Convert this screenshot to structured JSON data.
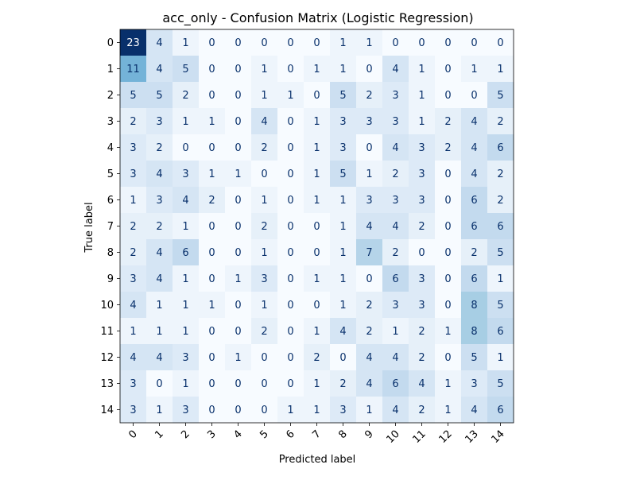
{
  "chart_data": {
    "type": "heatmap",
    "title": "acc_only - Confusion Matrix (Logistic Regression)",
    "xlabel": "Predicted label",
    "ylabel": "True label",
    "x_categories": [
      "0",
      "1",
      "2",
      "3",
      "4",
      "5",
      "6",
      "7",
      "8",
      "9",
      "10",
      "11",
      "12",
      "13",
      "14"
    ],
    "y_categories": [
      "0",
      "1",
      "2",
      "3",
      "4",
      "5",
      "6",
      "7",
      "8",
      "9",
      "10",
      "11",
      "12",
      "13",
      "14"
    ],
    "matrix": [
      [
        23,
        4,
        1,
        0,
        0,
        0,
        0,
        0,
        1,
        1,
        0,
        0,
        0,
        0,
        0
      ],
      [
        11,
        4,
        5,
        0,
        0,
        1,
        0,
        1,
        1,
        0,
        4,
        1,
        0,
        1,
        1
      ],
      [
        5,
        5,
        2,
        0,
        0,
        1,
        1,
        0,
        5,
        2,
        3,
        1,
        0,
        0,
        5
      ],
      [
        2,
        3,
        1,
        1,
        0,
        4,
        0,
        1,
        3,
        3,
        3,
        1,
        2,
        4,
        2
      ],
      [
        3,
        2,
        0,
        0,
        0,
        2,
        0,
        1,
        3,
        0,
        4,
        3,
        2,
        4,
        6
      ],
      [
        3,
        4,
        3,
        1,
        1,
        0,
        0,
        1,
        5,
        1,
        2,
        3,
        0,
        4,
        2
      ],
      [
        1,
        3,
        4,
        2,
        0,
        1,
        0,
        1,
        1,
        3,
        3,
        3,
        0,
        6,
        2
      ],
      [
        2,
        2,
        1,
        0,
        0,
        2,
        0,
        0,
        1,
        4,
        4,
        2,
        0,
        6,
        6
      ],
      [
        2,
        4,
        6,
        0,
        0,
        1,
        0,
        0,
        1,
        7,
        2,
        0,
        0,
        2,
        5
      ],
      [
        3,
        4,
        1,
        0,
        1,
        3,
        0,
        1,
        1,
        0,
        6,
        3,
        0,
        6,
        1
      ],
      [
        4,
        1,
        1,
        1,
        0,
        1,
        0,
        0,
        1,
        2,
        3,
        3,
        0,
        8,
        5
      ],
      [
        1,
        1,
        1,
        0,
        0,
        2,
        0,
        1,
        4,
        2,
        1,
        2,
        1,
        8,
        6
      ],
      [
        4,
        4,
        3,
        0,
        1,
        0,
        0,
        2,
        0,
        4,
        4,
        2,
        0,
        5,
        1
      ],
      [
        3,
        0,
        1,
        0,
        0,
        0,
        0,
        1,
        2,
        4,
        6,
        4,
        1,
        3,
        5
      ],
      [
        3,
        1,
        3,
        0,
        0,
        0,
        1,
        1,
        3,
        1,
        4,
        2,
        1,
        4,
        6
      ]
    ],
    "colormap": "Blues",
    "value_range": [
      0,
      23
    ],
    "grid": false,
    "legend": "none",
    "x_tick_rotation_deg": 45
  }
}
